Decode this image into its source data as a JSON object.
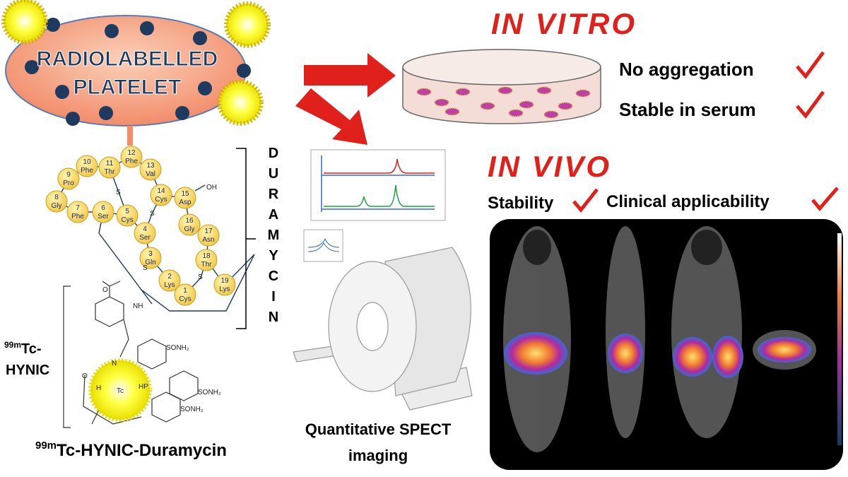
{
  "platelet": {
    "lines": [
      "RADIOLABELLED",
      "PLATELET"
    ]
  },
  "residues": [
    {
      "num": "1",
      "name": "Cys"
    },
    {
      "num": "2",
      "name": "Lys"
    },
    {
      "num": "3",
      "name": "Gln"
    },
    {
      "num": "4",
      "name": "Ser"
    },
    {
      "num": "5",
      "name": "Cys"
    },
    {
      "num": "6",
      "name": "Ser"
    },
    {
      "num": "7",
      "name": "Phe"
    },
    {
      "num": "8",
      "name": "Gly"
    },
    {
      "num": "9",
      "name": "Pro"
    },
    {
      "num": "10",
      "name": "Phe"
    },
    {
      "num": "11",
      "name": "Thr"
    },
    {
      "num": "12",
      "name": "Phe"
    },
    {
      "num": "13",
      "name": "Val"
    },
    {
      "num": "14",
      "name": "Cys"
    },
    {
      "num": "15",
      "name": "Asp"
    },
    {
      "num": "16",
      "name": "Gly"
    },
    {
      "num": "17",
      "name": "Asn"
    },
    {
      "num": "18",
      "name": "Thr"
    },
    {
      "num": "19",
      "name": "Lys"
    }
  ],
  "peptide_labels": {
    "oh": "OH",
    "sulfur": [
      "S",
      "S",
      "S",
      "S"
    ],
    "nh": "NH",
    "o": "O"
  },
  "bracket_letters": [
    "D",
    "U",
    "R",
    "A",
    "M",
    "Y",
    "C",
    "I",
    "N"
  ],
  "hynic_label": {
    "superscript": "99m",
    "line1": "Tc-",
    "line2": "HYNIC"
  },
  "chem_labels": {
    "n": "N",
    "tc": "Tc",
    "hp": "HP",
    "h": "H",
    "o": "O",
    "sulfonamides": [
      "SONH₂",
      "SONH₂",
      "SONH₂"
    ]
  },
  "compound_name": {
    "superscript": "99m",
    "text": "Tc-HYNIC-Duramycin"
  },
  "spect_caption": [
    "Quantitative SPECT",
    "imaging"
  ],
  "in_vitro": {
    "heading": "IN VITRO",
    "items": [
      "No aggregation",
      "Stable in serum"
    ]
  },
  "in_vivo": {
    "heading": "IN VIVO",
    "items": [
      "Stability",
      "Clinical applicability"
    ]
  }
}
